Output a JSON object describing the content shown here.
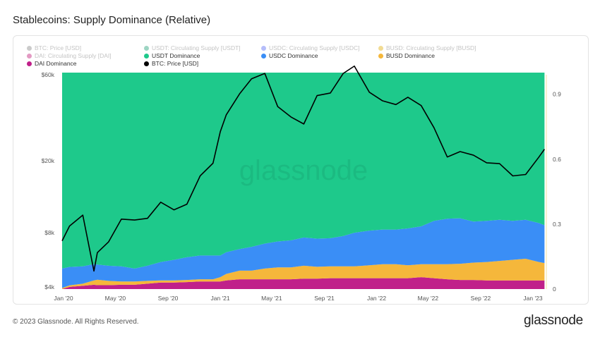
{
  "title": "Stablecoins: Supply Dominance (Relative)",
  "legend": [
    {
      "label": "BTC: Price [USD]",
      "color": "#8c8c8c",
      "active": false
    },
    {
      "label": "USDT: Circulating Supply [USDT]",
      "color": "#26a17b",
      "active": false
    },
    {
      "label": "USDC: Circulating Supply [USDC]",
      "color": "#5b6cf5",
      "active": false
    },
    {
      "label": "BUSD: Circulating Supply [BUSD]",
      "color": "#e0b010",
      "active": false
    },
    {
      "label": "DAI: Circulating Supply [DAI]",
      "color": "#c0207a",
      "active": false
    },
    {
      "label": "USDT Dominance",
      "color": "#1ec98b",
      "active": true
    },
    {
      "label": "USDC Dominance",
      "color": "#3a8ef6",
      "active": true
    },
    {
      "label": "BUSD Dominance",
      "color": "#f5b73b",
      "active": true
    },
    {
      "label": "DAI Dominance",
      "color": "#c0208a",
      "active": true
    },
    {
      "label": "BTC: Price [USD]",
      "color": "#000000",
      "active": true
    }
  ],
  "watermark": "glassnode",
  "footer": {
    "copyright": "© 2023 Glassnode. All Rights Reserved.",
    "logo": "glassnode"
  },
  "chart_data": {
    "type": "area",
    "x_axis": {
      "type": "date",
      "tick_labels": [
        "Jan '20",
        "May '20",
        "Sep '20",
        "Jan '21",
        "May '21",
        "Sep '21",
        "Jan '22",
        "May '22",
        "Sep '22",
        "Jan '23"
      ]
    },
    "left_axis": {
      "scale": "log",
      "unit": "USD",
      "tick_labels": [
        "$4k",
        "$8k",
        "$20k",
        "$60k"
      ],
      "range": [
        4000,
        70000
      ]
    },
    "right_axis": {
      "scale": "linear",
      "tick_labels": [
        "0",
        "0.3",
        "0.6",
        "0.9"
      ],
      "range": [
        0,
        1.0
      ]
    },
    "x": [
      "2019-12-28",
      "2020-01-15",
      "2020-02-15",
      "2020-03-12",
      "2020-03-20",
      "2020-04-15",
      "2020-05-15",
      "2020-06-15",
      "2020-07-15",
      "2020-08-15",
      "2020-09-15",
      "2020-10-15",
      "2020-11-15",
      "2020-12-15",
      "2021-01-01",
      "2021-01-15",
      "2021-02-15",
      "2021-03-15",
      "2021-04-15",
      "2021-05-15",
      "2021-06-15",
      "2021-07-15",
      "2021-08-15",
      "2021-09-15",
      "2021-10-15",
      "2021-11-10",
      "2021-12-15",
      "2022-01-15",
      "2022-02-15",
      "2022-03-15",
      "2022-04-15",
      "2022-05-15",
      "2022-06-15",
      "2022-07-15",
      "2022-08-15",
      "2022-09-15",
      "2022-10-15",
      "2022-11-15",
      "2022-12-15",
      "2023-01-15",
      "2023-01-28"
    ],
    "series": [
      {
        "name": "DAI Dominance",
        "color": "#c0208a",
        "values": [
          0.0,
          0.01,
          0.015,
          0.02,
          0.018,
          0.018,
          0.02,
          0.02,
          0.025,
          0.03,
          0.03,
          0.032,
          0.035,
          0.035,
          0.035,
          0.04,
          0.045,
          0.045,
          0.045,
          0.045,
          0.045,
          0.048,
          0.048,
          0.05,
          0.05,
          0.05,
          0.05,
          0.05,
          0.05,
          0.05,
          0.055,
          0.05,
          0.045,
          0.042,
          0.042,
          0.04,
          0.04,
          0.04,
          0.04,
          0.04,
          0.04
        ]
      },
      {
        "name": "BUSD Dominance",
        "color": "#f5b73b",
        "values": [
          0.005,
          0.007,
          0.01,
          0.02,
          0.025,
          0.02,
          0.015,
          0.015,
          0.013,
          0.01,
          0.01,
          0.01,
          0.01,
          0.01,
          0.02,
          0.03,
          0.04,
          0.04,
          0.05,
          0.055,
          0.055,
          0.06,
          0.055,
          0.055,
          0.055,
          0.055,
          0.06,
          0.065,
          0.065,
          0.06,
          0.06,
          0.065,
          0.07,
          0.075,
          0.08,
          0.085,
          0.09,
          0.095,
          0.1,
          0.085,
          0.08
        ]
      },
      {
        "name": "USDC Dominance",
        "color": "#3a8ef6",
        "values": [
          0.09,
          0.085,
          0.08,
          0.075,
          0.07,
          0.07,
          0.07,
          0.06,
          0.07,
          0.085,
          0.095,
          0.105,
          0.11,
          0.11,
          0.1,
          0.1,
          0.1,
          0.11,
          0.115,
          0.12,
          0.125,
          0.13,
          0.13,
          0.13,
          0.14,
          0.155,
          0.16,
          0.16,
          0.16,
          0.17,
          0.175,
          0.2,
          0.21,
          0.21,
          0.19,
          0.19,
          0.19,
          0.18,
          0.18,
          0.18,
          0.175
        ]
      },
      {
        "name": "USDT Dominance",
        "color": "#1ec98b",
        "values": [
          0.905,
          0.898,
          0.895,
          0.885,
          0.887,
          0.892,
          0.895,
          0.905,
          0.892,
          0.875,
          0.865,
          0.853,
          0.845,
          0.845,
          0.845,
          0.83,
          0.815,
          0.805,
          0.79,
          0.78,
          0.775,
          0.762,
          0.767,
          0.765,
          0.755,
          0.74,
          0.73,
          0.725,
          0.725,
          0.72,
          0.71,
          0.685,
          0.675,
          0.673,
          0.688,
          0.685,
          0.68,
          0.685,
          0.68,
          0.695,
          0.705
        ]
      },
      {
        "name": "BTC: Price [USD]",
        "color": "#000000",
        "axis": "left",
        "values": [
          7200,
          8700,
          10000,
          4900,
          6200,
          7100,
          9500,
          9400,
          9600,
          11800,
          10700,
          11500,
          16500,
          19400,
          29000,
          36000,
          47000,
          57000,
          61000,
          40000,
          35000,
          32000,
          46000,
          47500,
          61000,
          67000,
          48000,
          43000,
          41000,
          45000,
          40500,
          30500,
          21000,
          22500,
          21500,
          19500,
          19300,
          16500,
          16800,
          21000,
          23200
        ]
      }
    ]
  }
}
